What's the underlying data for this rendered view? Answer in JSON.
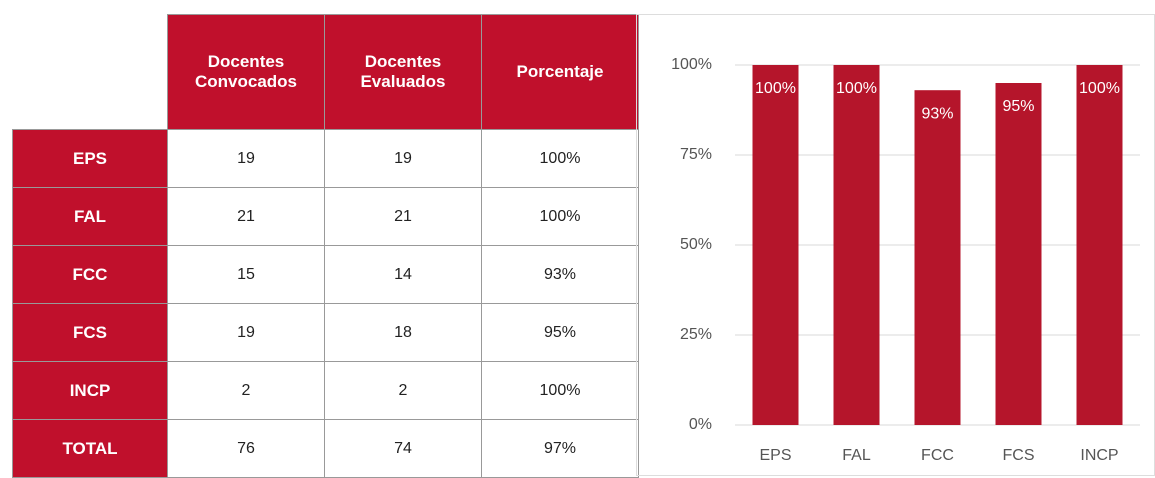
{
  "table": {
    "header": [
      "Docentes Convocados",
      "Docentes Evaluados",
      "Porcentaje"
    ],
    "rows": [
      [
        "EPS",
        "19",
        "19",
        "100%"
      ],
      [
        "FAL",
        "21",
        "21",
        "100%"
      ],
      [
        "FCC",
        "15",
        "14",
        "93%"
      ],
      [
        "FCS",
        "19",
        "18",
        "95%"
      ],
      [
        "INCP",
        "2",
        "2",
        "100%"
      ],
      [
        "TOTAL",
        "76",
        "74",
        "97%"
      ]
    ]
  },
  "chart_data": {
    "type": "bar",
    "categories": [
      "EPS",
      "FAL",
      "FCC",
      "FCS",
      "INCP"
    ],
    "values": [
      100,
      100,
      93,
      95,
      100
    ],
    "value_labels": [
      "100%",
      "100%",
      "93%",
      "95%",
      "100%"
    ],
    "color": "#b5152b",
    "ylim": [
      0,
      100
    ],
    "yticks": [
      {
        "value": 0,
        "label": "0%"
      },
      {
        "value": 25,
        "label": "25%"
      },
      {
        "value": 50,
        "label": "50%"
      },
      {
        "value": 75,
        "label": "75%"
      },
      {
        "value": 100,
        "label": "100%"
      }
    ],
    "grid": true
  }
}
